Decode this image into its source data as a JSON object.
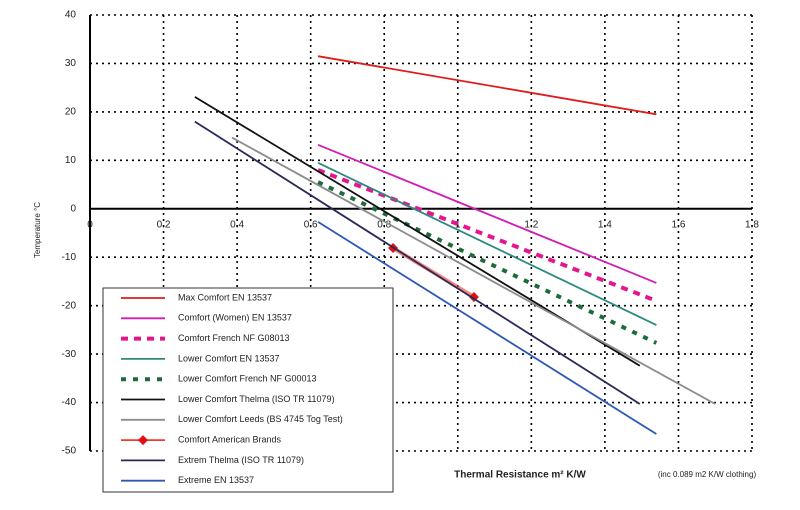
{
  "chart_data": {
    "type": "line",
    "y_label": "Temperature °C",
    "x_label": "Thermal Resistance m² K/W",
    "x_note": "(inc 0.089 m2 K/W clothing)",
    "xlim": [
      0,
      1.8
    ],
    "xticks": [
      0,
      0.2,
      0.4,
      0.6,
      0.8,
      1,
      1.2,
      1.4,
      1.6,
      1.8
    ],
    "ylim": [
      -50,
      40
    ],
    "yticks": [
      -50,
      -40,
      -30,
      -20,
      -10,
      0,
      10,
      20,
      30,
      40
    ],
    "grid": true,
    "grid_style": "dotted",
    "legend": "lower left",
    "series": [
      {
        "name": "Max Comfort EN 13537",
        "color": "#e01b1b",
        "style": "solid",
        "x": [
          0.62,
          1.54
        ],
        "values": [
          31.5,
          19.5
        ]
      },
      {
        "name": "Comfort (Women) EN 13537",
        "color": "#d21cb4",
        "style": "solid",
        "x": [
          0.62,
          1.54
        ],
        "values": [
          13.2,
          -15.3
        ]
      },
      {
        "name": "Comfort French NF G08013",
        "color": "#e3168f",
        "style": "dashed",
        "x": [
          0.62,
          1.54
        ],
        "values": [
          8,
          -19
        ]
      },
      {
        "name": "Lower Comfort EN 13537",
        "color": "#2d8a7e",
        "style": "solid",
        "x": [
          0.62,
          1.54
        ],
        "values": [
          9.5,
          -24
        ]
      },
      {
        "name": "Lower Comfort French NF G00013",
        "color": "#1f6a3a",
        "style": "dotted",
        "x": [
          0.62,
          1.54
        ],
        "values": [
          5.5,
          -27.7
        ]
      },
      {
        "name": "Lower Comfort Thelma (ISO TR 11079)",
        "color": "#111111",
        "style": "solid",
        "x": [
          0.285,
          1.495
        ],
        "values": [
          23.1,
          -32.4
        ]
      },
      {
        "name": "Lower Comfort Leeds (BS 4745 Tog Test)",
        "color": "#8c8c8c",
        "style": "solid",
        "x": [
          0.386,
          1.7
        ],
        "values": [
          14.7,
          -40.3
        ]
      },
      {
        "name": "Comfort American Brands",
        "color": "#f03a2a",
        "style": "solid",
        "marker": "diamond",
        "x": [
          0.824,
          1.044
        ],
        "values": [
          -8.1,
          -18.2
        ]
      },
      {
        "name": "Extrem Thelma (ISO TR 11079)",
        "color": "#2a2a5a",
        "style": "solid",
        "x": [
          0.285,
          1.495
        ],
        "values": [
          18,
          -40.3
        ]
      },
      {
        "name": "Extreme EN 13537",
        "color": "#2f57b8",
        "style": "solid",
        "x": [
          0.62,
          1.54
        ],
        "values": [
          -2.7,
          -46.5
        ]
      }
    ]
  }
}
